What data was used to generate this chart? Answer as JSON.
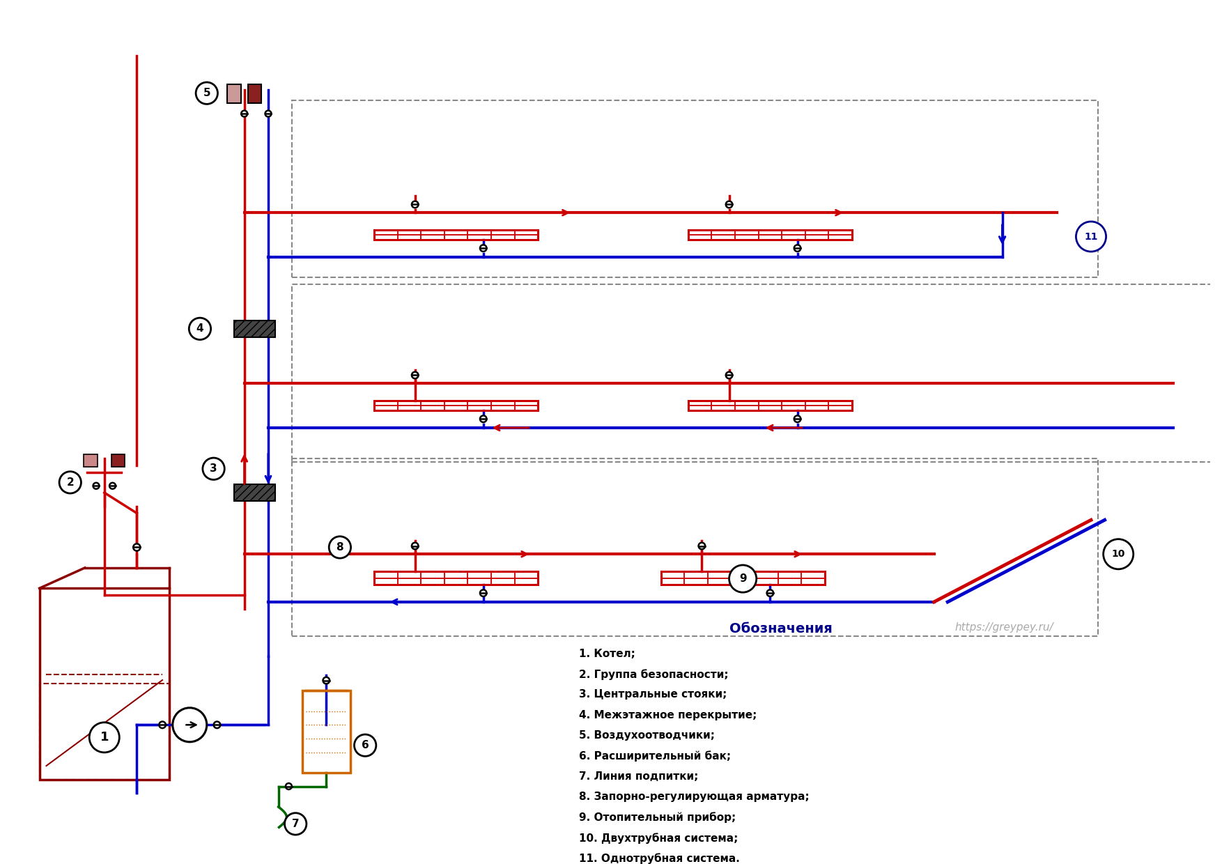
{
  "bg_color": "#ffffff",
  "red": "#cc0000",
  "dark_red": "#8B0000",
  "blue": "#0000cc",
  "dark_blue": "#00008B",
  "green": "#006600",
  "orange": "#cc6600",
  "black": "#000000",
  "gray": "#888888",
  "legend_title": "Обозначения",
  "legend_items": [
    "1. Котел;",
    "2. Группа безопасности;",
    "3. Центральные стояки;",
    "4. Межэтажное перекрытие;",
    "5. Воздухоотводчики;",
    "6. Расширительный бак;",
    "7. Линия подпитки;",
    "8. Запорно-регулирующая арматура;",
    "9. Отопительный прибор;",
    "10. Двухтрубная система;",
    "11. Однотрубная система."
  ],
  "url": "https://greypey.ru/"
}
